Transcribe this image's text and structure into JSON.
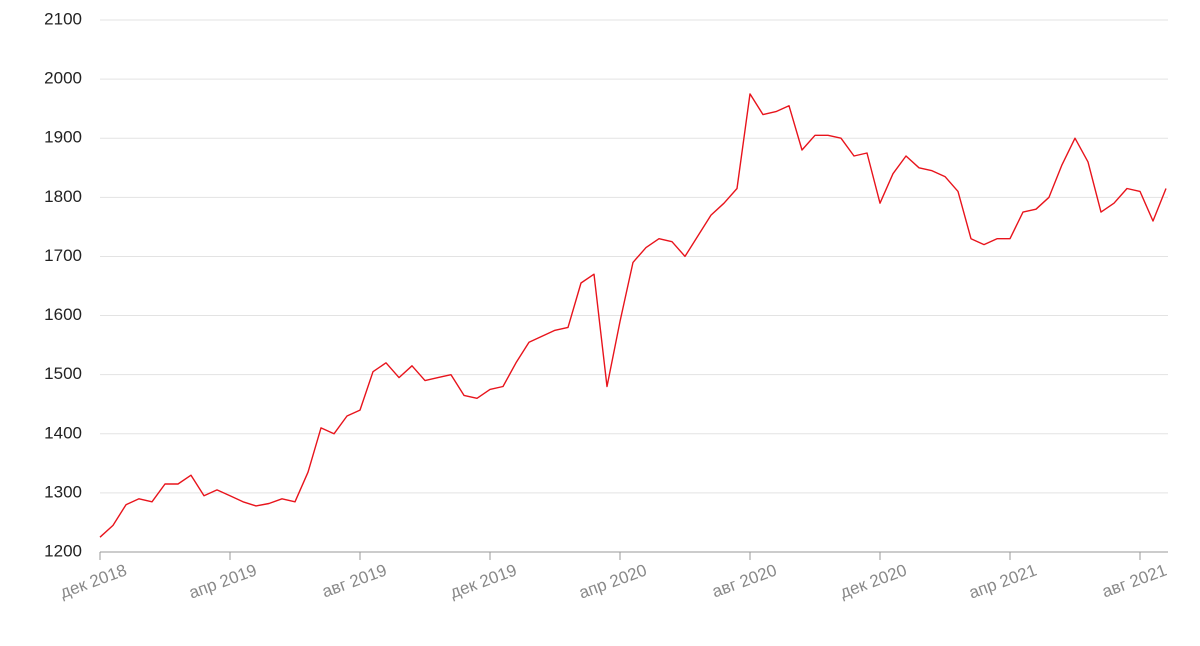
{
  "chart_data": {
    "type": "line",
    "categories": [
      "дек 2018",
      null,
      null,
      null,
      null,
      null,
      null,
      null,
      null,
      null,
      "апр 2019",
      null,
      null,
      null,
      null,
      null,
      null,
      null,
      null,
      null,
      "авг 2019",
      null,
      null,
      null,
      null,
      null,
      null,
      null,
      null,
      null,
      "дек 2019",
      null,
      null,
      null,
      null,
      null,
      null,
      null,
      null,
      null,
      "апр 2020",
      null,
      null,
      null,
      null,
      null,
      null,
      null,
      null,
      null,
      "авг 2020",
      null,
      null,
      null,
      null,
      null,
      null,
      null,
      null,
      null,
      "дек 2020",
      null,
      null,
      null,
      null,
      null,
      null,
      null,
      null,
      null,
      "апр 2021",
      null,
      null,
      null,
      null,
      null,
      null,
      null,
      null,
      null,
      "авг 2021",
      null,
      null
    ],
    "values": [
      1225,
      1245,
      1280,
      1290,
      1285,
      1315,
      1315,
      1330,
      1295,
      1305,
      1295,
      1285,
      1278,
      1282,
      1290,
      1285,
      1335,
      1410,
      1400,
      1430,
      1440,
      1505,
      1520,
      1495,
      1515,
      1490,
      1495,
      1500,
      1465,
      1460,
      1475,
      1480,
      1520,
      1555,
      1565,
      1575,
      1580,
      1655,
      1670,
      1480,
      1590,
      1690,
      1715,
      1730,
      1725,
      1700,
      1735,
      1770,
      1790,
      1815,
      1975,
      1940,
      1945,
      1955,
      1880,
      1905,
      1905,
      1900,
      1870,
      1875,
      1790,
      1840,
      1870,
      1850,
      1845,
      1835,
      1810,
      1730,
      1720,
      1730,
      1730,
      1775,
      1780,
      1800,
      1855,
      1900,
      1860,
      1775,
      1790,
      1815,
      1810,
      1760,
      1815
    ],
    "color": "#e8141c",
    "ylim": [
      1200,
      2100
    ],
    "yticks": [
      1200,
      1300,
      1400,
      1500,
      1600,
      1700,
      1800,
      1900,
      2000,
      2100
    ],
    "grid": true
  }
}
